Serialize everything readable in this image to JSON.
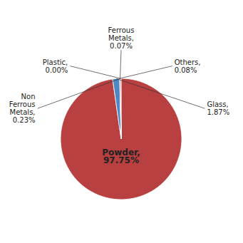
{
  "chart_data": {
    "type": "pie",
    "values": [
      97.75,
      1.87,
      0.08,
      0.07,
      0.0,
      0.23
    ],
    "value_labels": [
      "Powder,\n97.75%",
      "Glass,\n1.87%",
      "Others,\n0.08%",
      "Ferrous\nMetals,\n0.07%",
      "Plastic,\n0.00%",
      "Non\nFerrous\nMetals,\n0.23%"
    ],
    "colors": [
      "#b94040",
      "#4f86c4",
      "#a0a0a0",
      "#c05050",
      "#b94040",
      "#b94040"
    ],
    "data_labels": true
  }
}
